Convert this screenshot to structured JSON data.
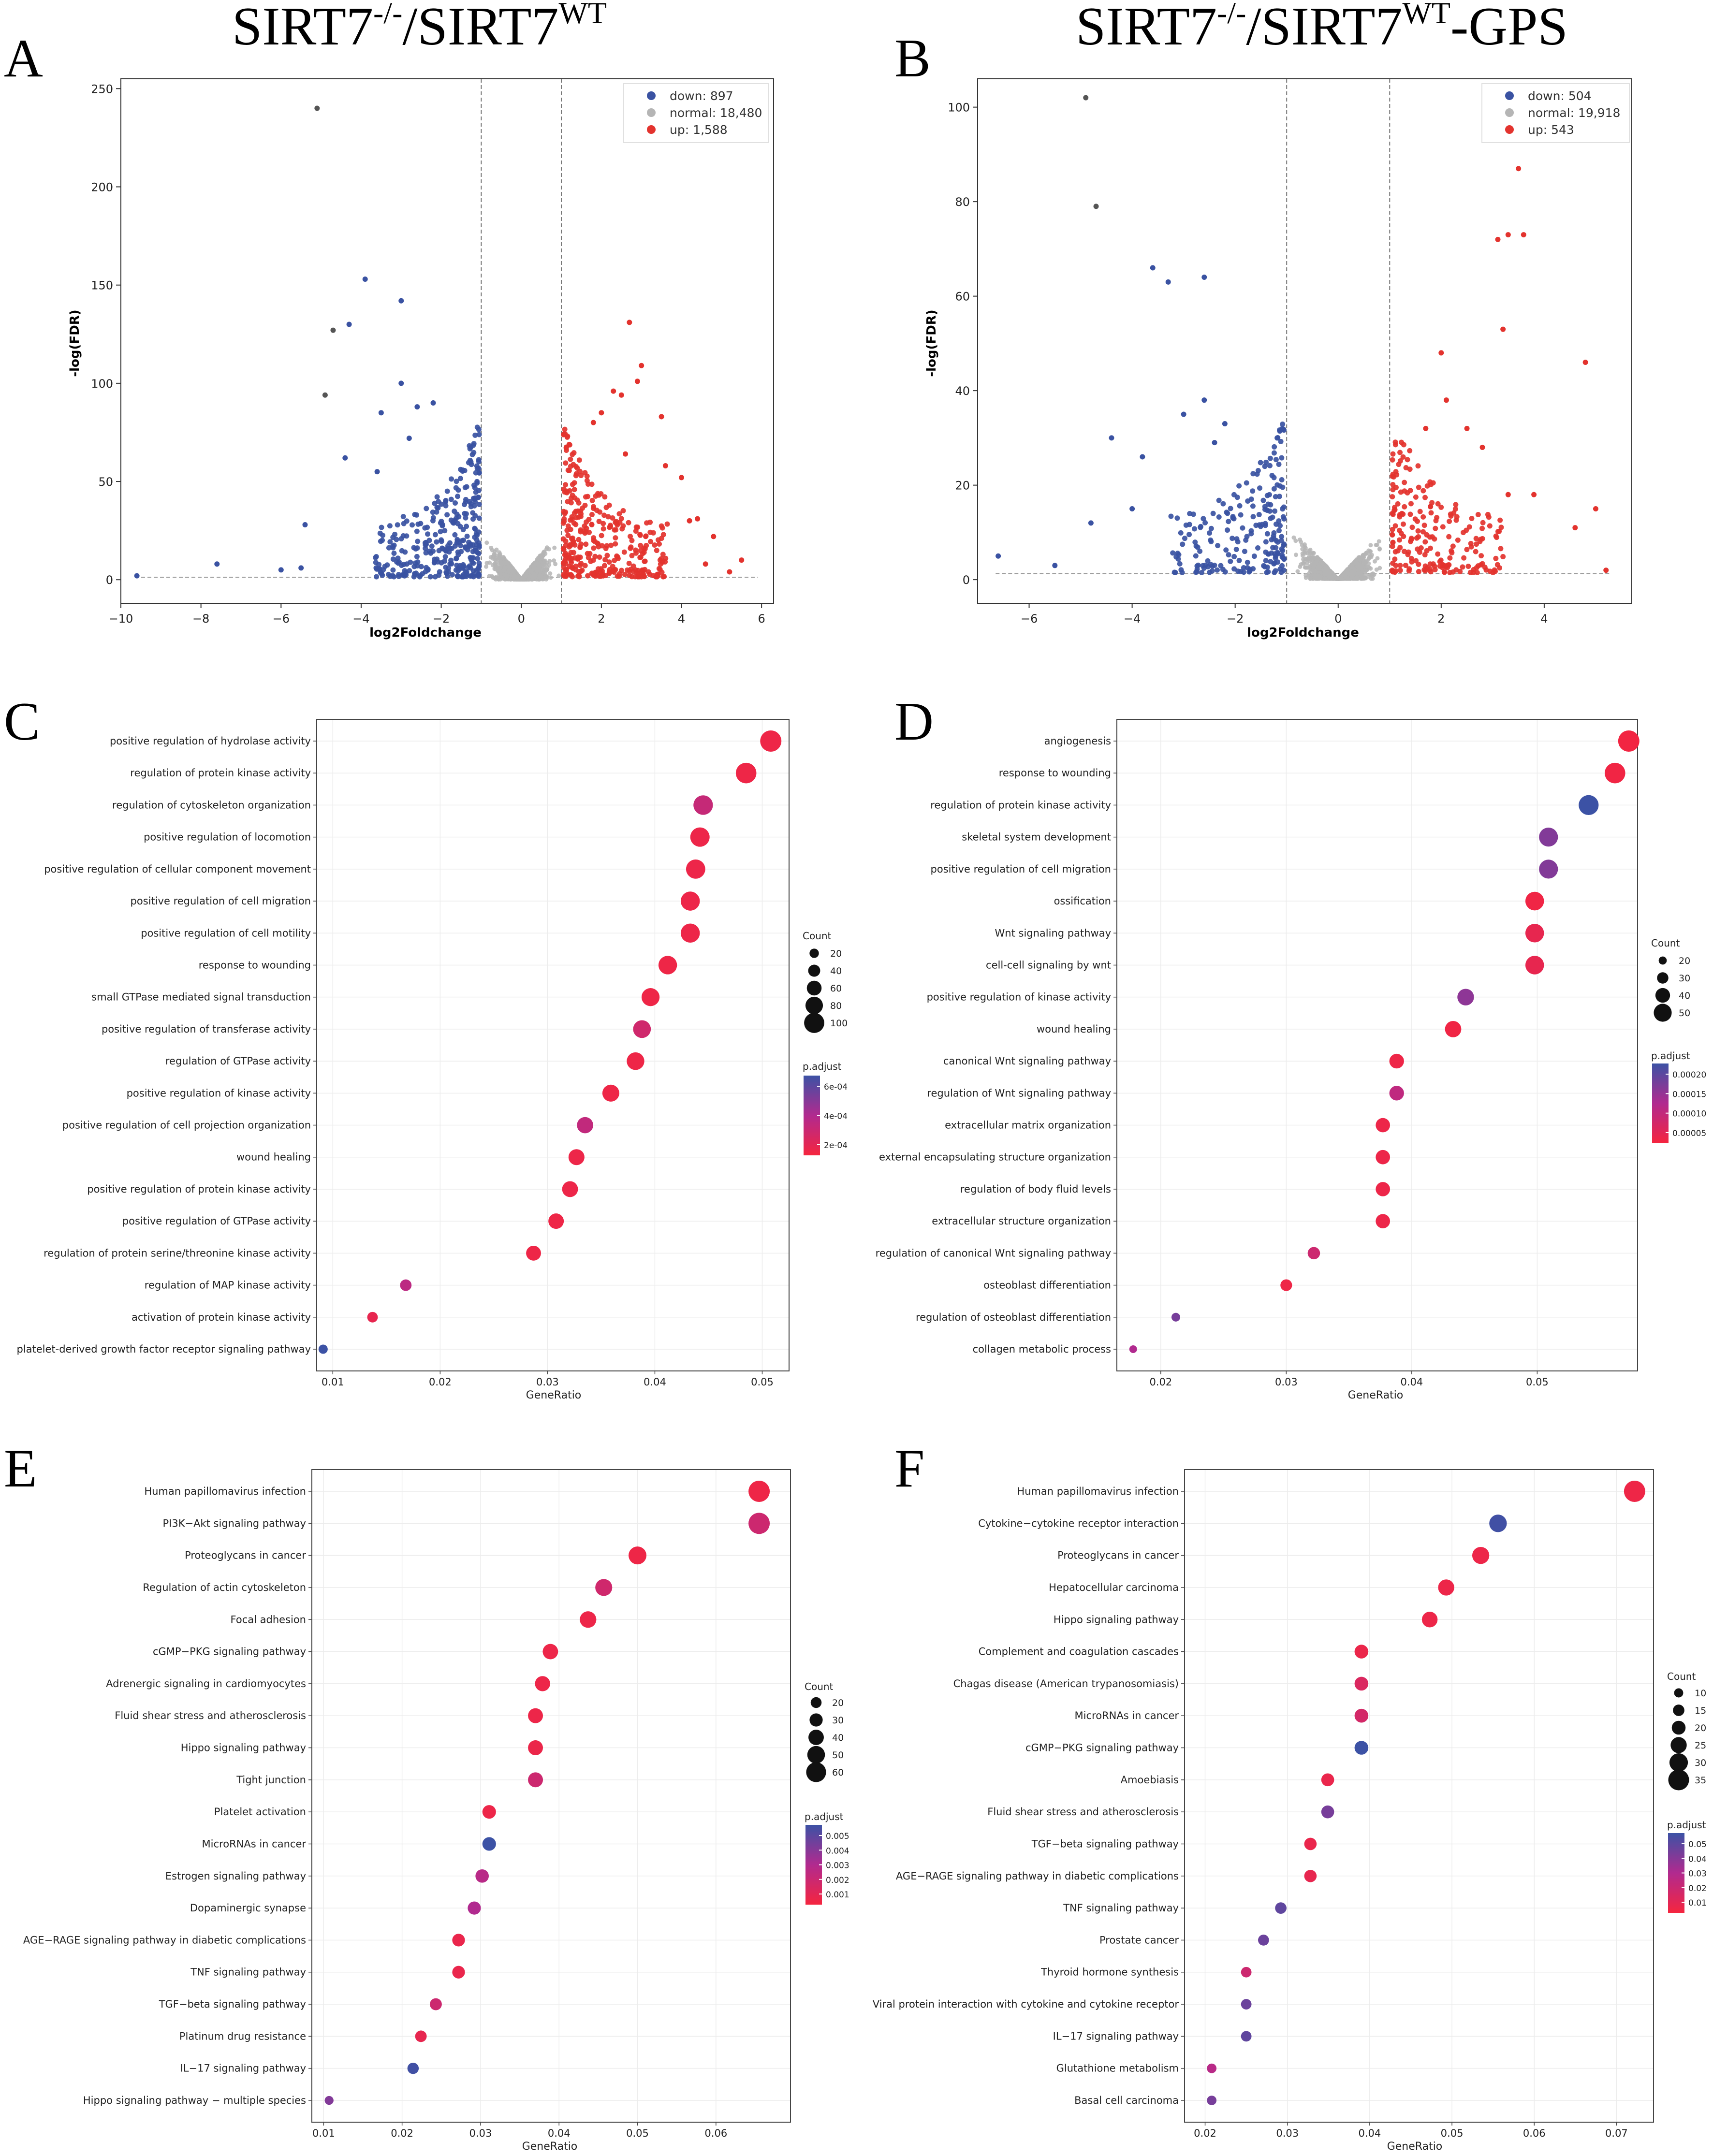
{
  "colors": {
    "down": "#3a52a2",
    "normal": "#b5b5b5",
    "up": "#e3332e",
    "low_p": "#f5253f",
    "mid_p": "#b12a8f",
    "high_p": "#3c52a5"
  },
  "panel_labels": [
    "A",
    "B",
    "C",
    "D",
    "E",
    "F"
  ],
  "chart_data": [
    {
      "id": "A",
      "type": "scatter",
      "title": "SIRT7",
      "title_sup1": "-/-",
      "title_mid": "/SIRT7",
      "title_sup2": "WT",
      "title_suffix": "",
      "xlabel": "log2Foldchange",
      "ylabel": "-log(FDR)",
      "xlim": [
        -10,
        6.3
      ],
      "ylim": [
        -12,
        255
      ],
      "xticks": [
        -10,
        -8,
        -6,
        -4,
        -2,
        0,
        2,
        4,
        6
      ],
      "yticks": [
        0,
        50,
        100,
        150,
        200,
        250
      ],
      "fc_lines": [
        -1,
        1
      ],
      "fdr_line": 1.3,
      "legend": [
        "down: 897",
        "normal: 18,480",
        "up: 1,588"
      ],
      "sample_points": {
        "down": [
          [
            -5.1,
            240
          ],
          [
            -3.9,
            153
          ],
          [
            -4.7,
            127
          ],
          [
            -4.3,
            130
          ],
          [
            -3.0,
            142
          ],
          [
            -4.9,
            94
          ],
          [
            -3.0,
            100
          ],
          [
            -2.6,
            88
          ],
          [
            -2.2,
            90
          ],
          [
            -3.5,
            85
          ],
          [
            -2.8,
            72
          ],
          [
            -4.4,
            62
          ],
          [
            -3.6,
            55
          ],
          [
            -5.4,
            28
          ],
          [
            -7.6,
            8
          ],
          [
            -9.6,
            2
          ],
          [
            -6.0,
            5
          ],
          [
            -5.5,
            6
          ]
        ],
        "up": [
          [
            2.7,
            131
          ],
          [
            3.0,
            109
          ],
          [
            2.9,
            101
          ],
          [
            2.5,
            94
          ],
          [
            2.3,
            96
          ],
          [
            3.5,
            83
          ],
          [
            2.0,
            85
          ],
          [
            1.8,
            80
          ],
          [
            2.6,
            64
          ],
          [
            3.6,
            58
          ],
          [
            4.0,
            52
          ],
          [
            4.4,
            31
          ],
          [
            4.8,
            22
          ],
          [
            5.5,
            10
          ],
          [
            5.2,
            4
          ],
          [
            4.6,
            8
          ],
          [
            4.2,
            30
          ]
        ]
      }
    },
    {
      "id": "B",
      "type": "scatter",
      "title": "SIRT7",
      "title_sup1": "-/-",
      "title_mid": "/SIRT7",
      "title_sup2": "WT",
      "title_suffix": "-GPS",
      "xlabel": "log2Foldchange",
      "ylabel": "-log(FDR)",
      "xlim": [
        -7.0,
        5.7
      ],
      "ylim": [
        -5,
        106
      ],
      "xticks": [
        -6,
        -4,
        -2,
        0,
        2,
        4
      ],
      "yticks": [
        0,
        20,
        40,
        60,
        80,
        100
      ],
      "fc_lines": [
        -1,
        1
      ],
      "fdr_line": 1.3,
      "legend": [
        "down: 504",
        "normal: 19,918",
        "up: 543"
      ],
      "sample_points": {
        "down": [
          [
            -4.9,
            102
          ],
          [
            -4.7,
            79
          ],
          [
            -3.6,
            66
          ],
          [
            -3.3,
            63
          ],
          [
            -2.6,
            64
          ],
          [
            -2.6,
            38
          ],
          [
            -2.2,
            33
          ],
          [
            -4.4,
            30
          ],
          [
            -3.8,
            26
          ],
          [
            -2.4,
            29
          ],
          [
            -3.0,
            35
          ],
          [
            -4.0,
            15
          ],
          [
            -4.8,
            12
          ],
          [
            -6.6,
            5
          ],
          [
            -5.5,
            3
          ]
        ],
        "up": [
          [
            3.5,
            87
          ],
          [
            3.3,
            73
          ],
          [
            3.1,
            72
          ],
          [
            3.6,
            73
          ],
          [
            3.2,
            53
          ],
          [
            4.8,
            46
          ],
          [
            2.0,
            48
          ],
          [
            2.1,
            38
          ],
          [
            1.7,
            32
          ],
          [
            2.5,
            32
          ],
          [
            2.8,
            28
          ],
          [
            3.3,
            18
          ],
          [
            3.8,
            18
          ],
          [
            5.0,
            15
          ],
          [
            4.6,
            11
          ],
          [
            5.2,
            2
          ]
        ]
      }
    },
    {
      "id": "C",
      "type": "scatter",
      "subtype": "dotplot",
      "xlabel": "GeneRatio",
      "xlim": [
        0.0085,
        0.0525
      ],
      "xticks": [
        0.01,
        0.02,
        0.03,
        0.04,
        0.05
      ],
      "xtick_labels": [
        "0.01",
        "0.02",
        "0.03",
        "0.04",
        "0.05"
      ],
      "size_legend_title": "Count",
      "size_legend": [
        20,
        40,
        60,
        80,
        100
      ],
      "size_range": [
        8,
        108
      ],
      "color_legend_title": "p.adjust",
      "color_ticks": [
        "6e-04",
        "4e-04",
        "2e-04"
      ],
      "terms": [
        "positive regulation of hydrolase activity",
        "regulation of protein kinase activity",
        "regulation of cytoskeleton organization",
        "positive regulation of locomotion",
        "positive regulation of cellular component movement",
        "positive regulation of cell migration",
        "positive regulation of cell motility",
        "response to wounding",
        "small GTPase mediated signal transduction",
        "positive regulation of transferase activity",
        "regulation of GTPase activity",
        "positive regulation of kinase activity",
        "positive regulation of cell projection organization",
        "wound healing",
        "positive regulation of protein kinase activity",
        "positive regulation of GTPase activity",
        "regulation of protein serine/threonine kinase activity",
        "regulation of MAP kinase activity",
        "activation of protein kinase activity",
        "platelet-derived growth factor receptor signaling pathway"
      ],
      "gene_ratio": [
        0.0508,
        0.0485,
        0.0445,
        0.0442,
        0.0438,
        0.0433,
        0.0433,
        0.0412,
        0.0396,
        0.0388,
        0.0382,
        0.0359,
        0.0335,
        0.0327,
        0.0321,
        0.0308,
        0.0287,
        0.0168,
        0.0137,
        0.0091
      ],
      "count": [
        108,
        103,
        95,
        94,
        93,
        92,
        92,
        88,
        84,
        82,
        81,
        76,
        71,
        69,
        68,
        65,
        61,
        36,
        29,
        19
      ],
      "color_level": [
        0.05,
        0.05,
        0.35,
        0.06,
        0.06,
        0.06,
        0.06,
        0.05,
        0.05,
        0.28,
        0.05,
        0.05,
        0.38,
        0.06,
        0.06,
        0.05,
        0.05,
        0.42,
        0.1,
        1.0
      ]
    },
    {
      "id": "D",
      "type": "scatter",
      "subtype": "dotplot",
      "xlabel": "GeneRatio",
      "xlim": [
        0.0165,
        0.058
      ],
      "xticks": [
        0.02,
        0.03,
        0.04,
        0.05
      ],
      "xtick_labels": [
        "0.02",
        "0.03",
        "0.04",
        "0.05"
      ],
      "size_legend_title": "Count",
      "size_legend": [
        20,
        30,
        40,
        50
      ],
      "size_range": [
        19,
        60
      ],
      "color_legend_title": "p.adjust",
      "color_ticks": [
        "0.00020",
        "0.00015",
        "0.00010",
        "0.00005"
      ],
      "terms": [
        "angiogenesis",
        "response to wounding",
        "regulation of protein kinase activity",
        "skeletal system development",
        "positive regulation of cell migration",
        "ossification",
        "Wnt signaling pathway",
        "cell-cell signaling by wnt",
        "positive regulation of kinase activity",
        "wound healing",
        "canonical Wnt signaling pathway",
        "regulation of Wnt signaling pathway",
        "extracellular matrix organization",
        "external encapsulating structure organization",
        "regulation of body fluid levels",
        "extracellular structure organization",
        "regulation of canonical Wnt signaling pathway",
        "osteoblast differentiation",
        "regulation of osteoblast differentiation",
        "collagen metabolic process"
      ],
      "gene_ratio": [
        0.0573,
        0.0562,
        0.0541,
        0.0509,
        0.0509,
        0.0498,
        0.0498,
        0.0498,
        0.0443,
        0.0433,
        0.0388,
        0.0388,
        0.0377,
        0.0377,
        0.0377,
        0.0377,
        0.0322,
        0.03,
        0.0212,
        0.0178
      ],
      "count": [
        60,
        58,
        56,
        53,
        53,
        52,
        52,
        52,
        46,
        45,
        40,
        40,
        39,
        39,
        39,
        39,
        33,
        31,
        22,
        19
      ],
      "color_level": [
        0.02,
        0.03,
        1.0,
        0.7,
        0.7,
        0.04,
        0.1,
        0.1,
        0.65,
        0.04,
        0.05,
        0.4,
        0.06,
        0.06,
        0.06,
        0.06,
        0.3,
        0.05,
        0.75,
        0.5
      ]
    },
    {
      "id": "E",
      "type": "scatter",
      "subtype": "dotplot",
      "xlabel": "GeneRatio",
      "xlim": [
        0.0085,
        0.0695
      ],
      "xticks": [
        0.01,
        0.02,
        0.03,
        0.04,
        0.05,
        0.06
      ],
      "xtick_labels": [
        "0.01",
        "0.02",
        "0.03",
        "0.04",
        "0.05",
        "0.06"
      ],
      "size_legend_title": "Count",
      "size_legend": [
        20,
        30,
        40,
        50,
        60
      ],
      "size_range": [
        6,
        66
      ],
      "color_legend_title": "p.adjust",
      "color_ticks": [
        "0.005",
        "0.004",
        "0.003",
        "0.002",
        "0.001"
      ],
      "terms": [
        "Human papillomavirus infection",
        "PI3K−Akt signaling pathway",
        "Proteoglycans in cancer",
        "Regulation of actin cytoskeleton",
        "Focal adhesion",
        "cGMP−PKG signaling pathway",
        "Adrenergic signaling in cardiomyocytes",
        "Fluid shear stress and atherosclerosis",
        "Hippo signaling pathway",
        "Tight junction",
        "Platelet activation",
        "MicroRNAs in cancer",
        "Estrogen signaling pathway",
        "Dopaminergic synapse",
        "AGE−RAGE signaling pathway in diabetic complications",
        "TNF signaling pathway",
        "TGF−beta signaling pathway",
        "Platinum drug resistance",
        "IL−17 signaling pathway",
        "Hippo signaling pathway − multiple species"
      ],
      "gene_ratio": [
        0.0655,
        0.0655,
        0.05,
        0.0457,
        0.0437,
        0.0389,
        0.0379,
        0.037,
        0.037,
        0.037,
        0.0311,
        0.0311,
        0.0302,
        0.0292,
        0.0272,
        0.0272,
        0.0243,
        0.0224,
        0.0214,
        0.0107
      ],
      "count": [
        66,
        66,
        51,
        47,
        45,
        40,
        39,
        38,
        38,
        38,
        32,
        32,
        31,
        30,
        28,
        28,
        25,
        23,
        22,
        11
      ],
      "color_level": [
        0.05,
        0.3,
        0.05,
        0.28,
        0.06,
        0.06,
        0.06,
        0.06,
        0.07,
        0.3,
        0.06,
        1.0,
        0.45,
        0.5,
        0.08,
        0.08,
        0.3,
        0.1,
        0.98,
        0.7
      ]
    },
    {
      "id": "F",
      "type": "scatter",
      "subtype": "dotplot",
      "xlabel": "GeneRatio",
      "xlim": [
        0.0175,
        0.0745
      ],
      "xticks": [
        0.02,
        0.03,
        0.04,
        0.05,
        0.06,
        0.07
      ],
      "xtick_labels": [
        "0.02",
        "0.03",
        "0.04",
        "0.05",
        "0.06",
        "0.07"
      ],
      "size_legend_title": "Count",
      "size_legend": [
        10,
        15,
        20,
        25,
        30,
        35
      ],
      "size_range": [
        7,
        36
      ],
      "color_legend_title": "p.adjust",
      "color_ticks": [
        "0.05",
        "0.04",
        "0.03",
        "0.02",
        "0.01"
      ],
      "terms": [
        "Human papillomavirus infection",
        "Cytokine−cytokine receptor interaction",
        "Proteoglycans in cancer",
        "Hepatocellular carcinoma",
        "Hippo signaling pathway",
        "Complement and coagulation cascades",
        "Chagas disease (American trypanosomiasis)",
        "MicroRNAs in cancer",
        "cGMP−PKG signaling pathway",
        "Amoebiasis",
        "Fluid shear stress and atherosclerosis",
        "TGF−beta signaling pathway",
        "AGE−RAGE signaling pathway in diabetic complications",
        "TNF signaling pathway",
        "Prostate cancer",
        "Thyroid hormone synthesis",
        "Viral protein interaction with cytokine and cytokine receptor",
        "IL−17 signaling pathway",
        "Glutathione metabolism",
        "Basal cell carcinoma"
      ],
      "gene_ratio": [
        0.0722,
        0.0556,
        0.0535,
        0.0493,
        0.0473,
        0.039,
        0.039,
        0.039,
        0.039,
        0.0349,
        0.0349,
        0.0328,
        0.0328,
        0.0292,
        0.0271,
        0.025,
        0.025,
        0.025,
        0.0208,
        0.0208
      ],
      "count": [
        36,
        28,
        27,
        25,
        24,
        20,
        20,
        20,
        20,
        18,
        18,
        17,
        17,
        15,
        14,
        13,
        13,
        13,
        11,
        11
      ],
      "color_level": [
        0.05,
        0.98,
        0.06,
        0.06,
        0.06,
        0.07,
        0.2,
        0.25,
        1.0,
        0.08,
        0.75,
        0.08,
        0.1,
        0.85,
        0.8,
        0.3,
        0.8,
        0.85,
        0.45,
        0.75
      ]
    }
  ]
}
